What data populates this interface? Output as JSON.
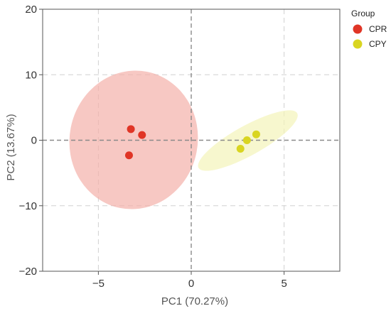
{
  "chart_data": {
    "type": "scatter",
    "xlabel": "PC1  (70.27%)",
    "ylabel": "PC2  (13.67%)",
    "xlim": [
      -8,
      8
    ],
    "ylim": [
      -20,
      20
    ],
    "x_ticks": [
      -5,
      0,
      5
    ],
    "y_ticks": [
      -20,
      -10,
      0,
      10,
      20
    ],
    "x_tick_labels": [
      "−5",
      "0",
      "5"
    ],
    "y_tick_labels": [
      "−20",
      "−10",
      "0",
      "10",
      "20"
    ],
    "grid": true,
    "zero_lines": true,
    "legend": {
      "title": "Group",
      "placement": "right-top"
    },
    "series": [
      {
        "name": "CPR",
        "color": "#e03526",
        "fill": "#f4b0aa",
        "points": [
          {
            "x": -3.25,
            "y": 1.7
          },
          {
            "x": -2.65,
            "y": 0.8
          },
          {
            "x": -3.35,
            "y": -2.3
          }
        ],
        "ellipse": {
          "cx": -3.1,
          "cy": 0.05,
          "rx": 3.45,
          "ry": 10.6,
          "angle": 11
        }
      },
      {
        "name": "CPY",
        "color": "#d9d521",
        "fill": "#f4f3b9",
        "points": [
          {
            "x": 2.65,
            "y": -1.3
          },
          {
            "x": 3.0,
            "y": 0.0
          },
          {
            "x": 3.5,
            "y": 0.9
          }
        ],
        "ellipse": {
          "cx": 3.05,
          "cy": -0.05,
          "rx": 0.8,
          "ry": 8.6,
          "angle": 61
        }
      }
    ]
  }
}
